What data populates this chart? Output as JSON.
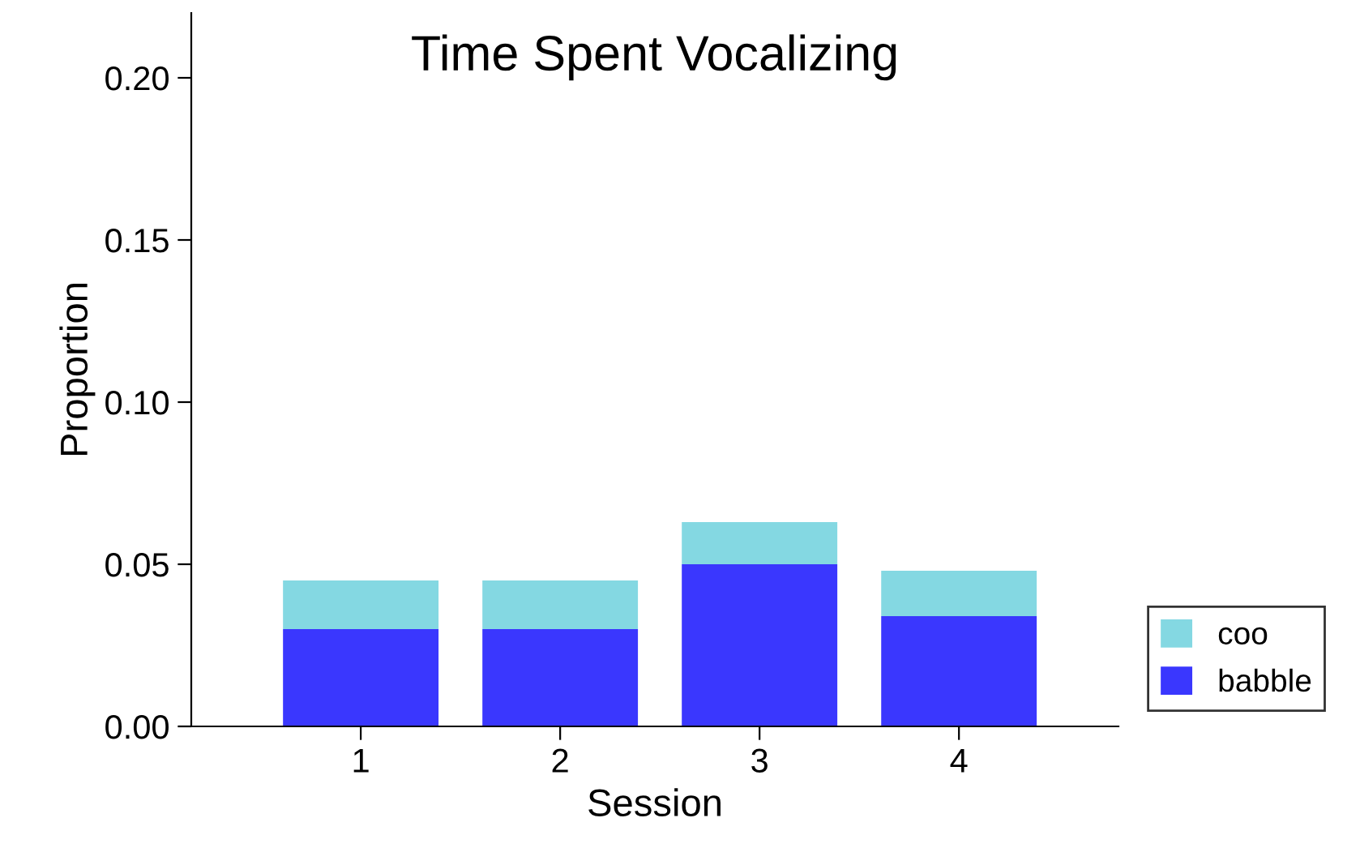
{
  "chart_data": {
    "type": "bar",
    "title": "Time Spent Vocalizing",
    "xlabel": "Session",
    "ylabel": "Proportion",
    "categories": [
      "1",
      "2",
      "3",
      "4"
    ],
    "stacked": true,
    "series": [
      {
        "name": "babble",
        "color": "#3a37fe",
        "values": [
          0.03,
          0.03,
          0.05,
          0.034
        ]
      },
      {
        "name": "coo",
        "color": "#84d8e2",
        "values": [
          0.015,
          0.015,
          0.013,
          0.014
        ]
      }
    ],
    "ylim": [
      0,
      0.22
    ],
    "yticks": [
      {
        "value": 0,
        "label": "0.00"
      },
      {
        "value": 0.05,
        "label": "0.05"
      },
      {
        "value": 0.1,
        "label": "0.10"
      },
      {
        "value": 0.15,
        "label": "0.15"
      },
      {
        "value": 0.2,
        "label": "0.20"
      }
    ],
    "grid": false,
    "legend": "bottom right"
  }
}
